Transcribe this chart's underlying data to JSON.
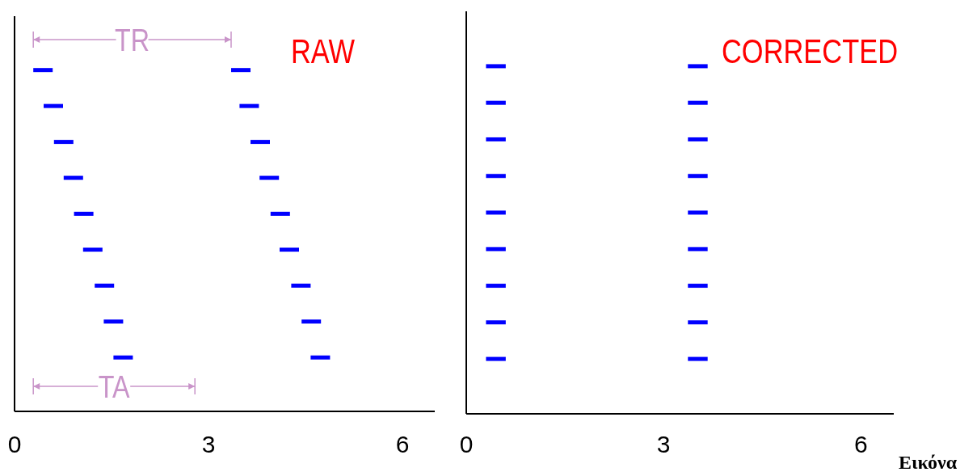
{
  "chart_data": [
    {
      "type": "bar",
      "orientation": "horizontal",
      "title": "RAW",
      "annotations": [
        "TR",
        "TA"
      ],
      "categories": [
        null,
        null,
        null,
        null,
        null,
        null,
        null,
        null,
        null,
        null,
        null
      ],
      "xlim": [
        0,
        6.5
      ],
      "xticks": [
        0,
        3,
        6
      ],
      "tick_labels": "x",
      "series": [
        {
          "color": "#0000ff",
          "base": [
            null,
            0.29,
            0.45,
            0.61,
            0.76,
            0.92,
            1.06,
            1.24,
            1.38,
            1.53,
            null
          ],
          "values": [
            null,
            0.3,
            0.3,
            0.3,
            0.3,
            0.3,
            0.3,
            0.3,
            0.3,
            0.3,
            null
          ]
        },
        {
          "color": "#0000ff",
          "base": [
            null,
            3.35,
            3.48,
            3.65,
            3.79,
            3.96,
            4.1,
            4.28,
            4.44,
            4.58,
            null
          ],
          "values": [
            null,
            0.3,
            0.3,
            0.3,
            0.3,
            0.3,
            0.3,
            0.3,
            0.3,
            0.3,
            null
          ]
        }
      ]
    },
    {
      "type": "bar",
      "orientation": "horizontal",
      "title": "CORRECTED",
      "annotations": [
        "Εικόνα"
      ],
      "categories": [
        null,
        null,
        null,
        null,
        null,
        null,
        null,
        null,
        null,
        null,
        null
      ],
      "xlim": [
        0,
        6.5
      ],
      "xticks": [
        0,
        3,
        6
      ],
      "tick_labels": "x",
      "series": [
        {
          "color": "#0000ff",
          "base": [
            null,
            0.3,
            0.3,
            0.3,
            0.3,
            0.3,
            0.3,
            0.3,
            0.3,
            0.3,
            null
          ],
          "values": [
            null,
            0.3,
            0.3,
            0.3,
            0.3,
            0.3,
            0.3,
            0.3,
            0.3,
            0.3,
            null
          ]
        },
        {
          "color": "#0000ff",
          "base": [
            null,
            3.37,
            3.37,
            3.37,
            3.37,
            3.37,
            3.37,
            3.37,
            3.37,
            3.37,
            null
          ],
          "values": [
            null,
            0.3,
            0.3,
            0.3,
            0.3,
            0.3,
            0.3,
            0.3,
            0.3,
            0.3,
            null
          ]
        }
      ]
    }
  ]
}
